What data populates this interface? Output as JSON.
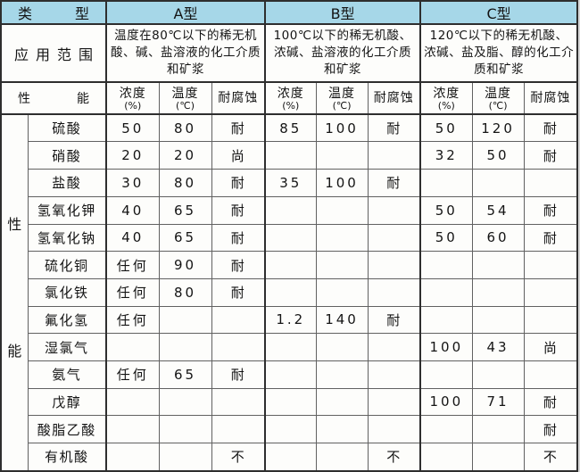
{
  "table": {
    "type_label": "类型",
    "application_label": "应用范围",
    "performance_label": "性能",
    "types": [
      {
        "name": "A型",
        "desc": "温度在80℃以下的稀无机酸、碱、盐溶液的化工介质和矿浆"
      },
      {
        "name": "B型",
        "desc": "100℃以下的稀无机酸、浓碱、盐溶液的化工介质和矿浆"
      },
      {
        "name": "C型",
        "desc": "120℃以下的稀无机酸、浓碱、盐及脂、醇的化工介质和矿浆"
      }
    ],
    "sub_headers": {
      "concentration": "浓度",
      "concentration_unit": "(%)",
      "temperature": "温度",
      "temperature_unit": "(℃)",
      "resistance": "耐腐蚀"
    },
    "row_group_label": {
      "top": "性",
      "bottom": "能"
    },
    "rows": [
      {
        "name": "硫酸",
        "a": [
          "50",
          "80",
          "耐"
        ],
        "b": [
          "85",
          "100",
          "耐"
        ],
        "c": [
          "50",
          "120",
          "耐"
        ]
      },
      {
        "name": "硝酸",
        "a": [
          "20",
          "20",
          "尚"
        ],
        "b": [
          "",
          "",
          ""
        ],
        "c": [
          "32",
          "50",
          "耐"
        ]
      },
      {
        "name": "盐酸",
        "a": [
          "30",
          "80",
          "耐"
        ],
        "b": [
          "35",
          "100",
          "耐"
        ],
        "c": [
          "",
          "",
          ""
        ]
      },
      {
        "name": "氢氧化钾",
        "a": [
          "40",
          "65",
          "耐"
        ],
        "b": [
          "",
          "",
          ""
        ],
        "c": [
          "50",
          "54",
          "耐"
        ]
      },
      {
        "name": "氢氧化钠",
        "a": [
          "40",
          "65",
          "耐"
        ],
        "b": [
          "",
          "",
          ""
        ],
        "c": [
          "50",
          "60",
          "耐"
        ]
      },
      {
        "name": "硫化铜",
        "a": [
          "任何",
          "90",
          "耐"
        ],
        "b": [
          "",
          "",
          ""
        ],
        "c": [
          "",
          "",
          ""
        ]
      },
      {
        "name": "氯化铁",
        "a": [
          "任何",
          "80",
          "耐"
        ],
        "b": [
          "",
          "",
          ""
        ],
        "c": [
          "",
          "",
          ""
        ]
      },
      {
        "name": "氟化氢",
        "a": [
          "任何",
          "",
          ""
        ],
        "b": [
          "1.2",
          "140",
          "耐"
        ],
        "c": [
          "",
          "",
          ""
        ]
      },
      {
        "name": "湿氯气",
        "a": [
          "",
          "",
          ""
        ],
        "b": [
          "",
          "",
          ""
        ],
        "c": [
          "100",
          "43",
          "尚"
        ]
      },
      {
        "name": "氨气",
        "a": [
          "任何",
          "65",
          "耐"
        ],
        "b": [
          "",
          "",
          ""
        ],
        "c": [
          "",
          "",
          ""
        ]
      },
      {
        "name": "戊醇",
        "a": [
          "",
          "",
          ""
        ],
        "b": [
          "",
          "",
          ""
        ],
        "c": [
          "100",
          "71",
          "耐"
        ]
      },
      {
        "name": "酸脂乙酸",
        "a": [
          "",
          "",
          ""
        ],
        "b": [
          "",
          "",
          ""
        ],
        "c": [
          "",
          "",
          "耐"
        ]
      },
      {
        "name": "有机酸",
        "a": [
          "",
          "",
          "不"
        ],
        "b": [
          "",
          "",
          "不"
        ],
        "c": [
          "",
          "",
          "不"
        ]
      }
    ],
    "colors": {
      "header_bg": "#a6d7e8",
      "grid_dark": "#2e2e2e",
      "grid_light": "#616161",
      "cell_bg": "#fdfdfb",
      "page_bg": "#d7d7d7"
    }
  }
}
